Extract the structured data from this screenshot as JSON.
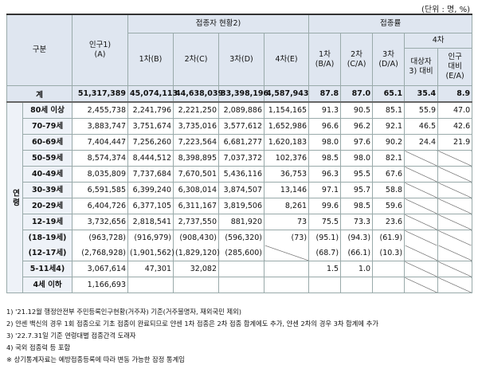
{
  "unit": "(단위 : 명, %)",
  "side_label": "연령",
  "header": {
    "group": "구분",
    "population": "인구1)\n(A)",
    "vaccinated": "접종자 현황2)",
    "rate": "접종률",
    "doses": [
      "1차(B)",
      "2차(C)",
      "3차(D)",
      "4차(E)"
    ],
    "rates": [
      "1차\n(B/A)",
      "2차\n(C/A)",
      "3차\n(D/A)"
    ],
    "rate4": "4차",
    "rate4_sub": [
      "대상자\n3) 대비",
      "인구\n대비\n(E/A)"
    ]
  },
  "table": {
    "rows": [
      [
        "계",
        "51,317,389",
        "45,074,113",
        "44,638,039",
        "33,398,196",
        "4,587,943",
        "87.8",
        "87.0",
        "65.1",
        "35.4",
        "8.9"
      ],
      [
        "80세 이상",
        "2,455,738",
        "2,241,796",
        "2,221,250",
        "2,089,886",
        "1,154,165",
        "91.3",
        "90.5",
        "85.1",
        "55.9",
        "47.0"
      ],
      [
        "70-79세",
        "3,883,747",
        "3,751,674",
        "3,735,016",
        "3,577,612",
        "1,652,986",
        "96.6",
        "96.2",
        "92.1",
        "46.5",
        "42.6"
      ],
      [
        "60-69세",
        "7,404,447",
        "7,256,260",
        "7,223,564",
        "6,681,277",
        "1,620,183",
        "98.0",
        "97.6",
        "90.2",
        "24.4",
        "21.9"
      ],
      [
        "50-59세",
        "8,574,374",
        "8,444,512",
        "8,398,895",
        "7,037,372",
        "102,376",
        "98.5",
        "98.0",
        "82.1",
        null,
        null
      ],
      [
        "40-49세",
        "8,035,809",
        "7,737,684",
        "7,670,501",
        "5,436,116",
        "36,753",
        "96.3",
        "95.5",
        "67.6",
        null,
        null
      ],
      [
        "30-39세",
        "6,591,585",
        "6,399,240",
        "6,308,014",
        "3,874,507",
        "13,146",
        "97.1",
        "95.7",
        "58.8",
        null,
        null
      ],
      [
        "20-29세",
        "6,404,726",
        "6,377,105",
        "6,311,167",
        "3,819,506",
        "8,261",
        "99.6",
        "98.5",
        "59.6",
        null,
        null
      ],
      [
        "12-19세",
        "3,732,656",
        "2,818,541",
        "2,737,550",
        "881,920",
        "73",
        "75.5",
        "73.3",
        "23.6",
        null,
        null
      ],
      [
        "(18-19세)",
        "(963,728)",
        "(916,979)",
        "(908,430)",
        "(596,320)",
        "(73)",
        "(95.1)",
        "(94.3)",
        "(61.9)",
        null,
        null
      ],
      [
        "(12-17세)",
        "(2,768,928)",
        "(1,901,562)",
        "(1,829,120)",
        "(285,600)",
        null,
        "(68.7)",
        "(66.1)",
        "(10.3)",
        null,
        null
      ],
      [
        "5-11세4)",
        "3,067,614",
        "47,301",
        "32,082",
        null,
        null,
        "1.5",
        "1.0",
        null,
        null,
        null
      ],
      [
        "4세 이하",
        "1,166,693",
        null,
        null,
        null,
        null,
        null,
        null,
        null,
        null,
        null
      ]
    ]
  },
  "footnotes": [
    "1) '21.12월 행정안전부 주민등록인구현황(거주자) 기준(거주불명자, 재외국민 제외)",
    "2) 얀센 백신의 경우 1회 접종으로 기초 접종이 완료되므로 얀센 1차 접종은 2차 접종 합계에도 추가, 얀센 2차의 경우 3차 합계에 추가",
    "3) '22.7.31일 기준 연령대별 접종간격 도래자",
    "4) 국외 접종력 등 포함",
    "※ 상기통계자료는 예방접종등록에 따라 변동 가능한 잠정 통계임"
  ]
}
